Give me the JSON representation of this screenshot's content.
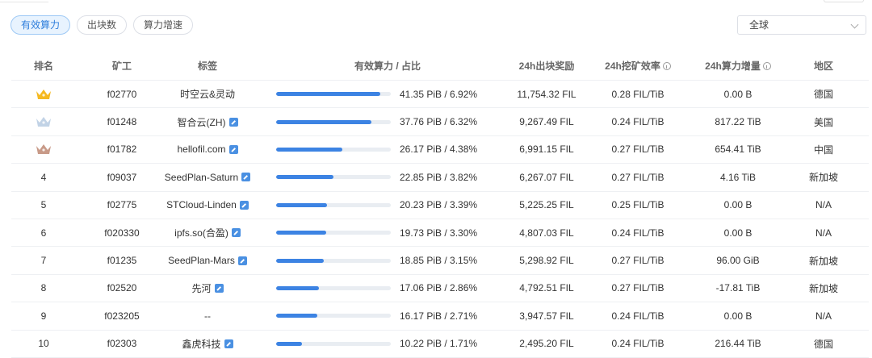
{
  "tabs": [
    {
      "label": "有效算力",
      "active": true
    },
    {
      "label": "出块数",
      "active": false
    },
    {
      "label": "算力增速",
      "active": false
    }
  ],
  "region_select": {
    "value": "全球"
  },
  "columns": {
    "rank": "排名",
    "miner": "矿工",
    "tag": "标签",
    "power": "有效算力 / 占比",
    "reward": "24h出块奖励",
    "efficiency": "24h挖矿效率",
    "increase": "24h算力增量",
    "area": "地区"
  },
  "colors": {
    "gold": "#f5b921",
    "silver": "#c2d3e6",
    "bronze": "#c89a88",
    "accent": "#3c83e3"
  },
  "rows": [
    {
      "rank": "",
      "medal": "gold",
      "miner": "f02770",
      "tag": "时空云&灵动",
      "tag_edit": false,
      "share": 6.92,
      "power": "41.35 PiB / 6.92%",
      "reward": "11,754.32 FIL",
      "efficiency": "0.28 FIL/TiB",
      "increase": "0.00 B",
      "area": "德国"
    },
    {
      "rank": "",
      "medal": "silver",
      "miner": "f01248",
      "tag": "智合云(ZH)",
      "tag_edit": true,
      "share": 6.32,
      "power": "37.76 PiB / 6.32%",
      "reward": "9,267.49 FIL",
      "efficiency": "0.24 FIL/TiB",
      "increase": "817.22 TiB",
      "area": "美国"
    },
    {
      "rank": "",
      "medal": "bronze",
      "miner": "f01782",
      "tag": "hellofil.com",
      "tag_edit": true,
      "share": 4.38,
      "power": "26.17 PiB / 4.38%",
      "reward": "6,991.15 FIL",
      "efficiency": "0.27 FIL/TiB",
      "increase": "654.41 TiB",
      "area": "中国"
    },
    {
      "rank": "4",
      "medal": "",
      "miner": "f09037",
      "tag": "SeedPlan-Saturn",
      "tag_edit": true,
      "share": 3.82,
      "power": "22.85 PiB / 3.82%",
      "reward": "6,267.07 FIL",
      "efficiency": "0.27 FIL/TiB",
      "increase": "4.16 TiB",
      "area": "新加坡"
    },
    {
      "rank": "5",
      "medal": "",
      "miner": "f02775",
      "tag": "STCloud-Linden",
      "tag_edit": true,
      "share": 3.39,
      "power": "20.23 PiB / 3.39%",
      "reward": "5,225.25 FIL",
      "efficiency": "0.25 FIL/TiB",
      "increase": "0.00 B",
      "area": "N/A"
    },
    {
      "rank": "6",
      "medal": "",
      "miner": "f020330",
      "tag": "ipfs.so(合盈)",
      "tag_edit": true,
      "share": 3.3,
      "power": "19.73 PiB / 3.30%",
      "reward": "4,807.03 FIL",
      "efficiency": "0.24 FIL/TiB",
      "increase": "0.00 B",
      "area": "N/A"
    },
    {
      "rank": "7",
      "medal": "",
      "miner": "f01235",
      "tag": "SeedPlan-Mars",
      "tag_edit": true,
      "share": 3.15,
      "power": "18.85 PiB / 3.15%",
      "reward": "5,298.92 FIL",
      "efficiency": "0.27 FIL/TiB",
      "increase": "96.00 GiB",
      "area": "新加坡"
    },
    {
      "rank": "8",
      "medal": "",
      "miner": "f02520",
      "tag": "先河",
      "tag_edit": true,
      "share": 2.86,
      "power": "17.06 PiB / 2.86%",
      "reward": "4,792.51 FIL",
      "efficiency": "0.27 FIL/TiB",
      "increase": "-17.81 TiB",
      "area": "新加坡"
    },
    {
      "rank": "9",
      "medal": "",
      "miner": "f023205",
      "tag": "--",
      "tag_edit": false,
      "share": 2.71,
      "power": "16.17 PiB / 2.71%",
      "reward": "3,947.57 FIL",
      "efficiency": "0.24 FIL/TiB",
      "increase": "0.00 B",
      "area": "N/A"
    },
    {
      "rank": "10",
      "medal": "",
      "miner": "f02303",
      "tag": "鑫虎科技",
      "tag_edit": true,
      "share": 1.71,
      "power": "10.22 PiB / 1.71%",
      "reward": "2,495.20 FIL",
      "efficiency": "0.24 FIL/TiB",
      "increase": "216.44 TiB",
      "area": "德国"
    }
  ]
}
